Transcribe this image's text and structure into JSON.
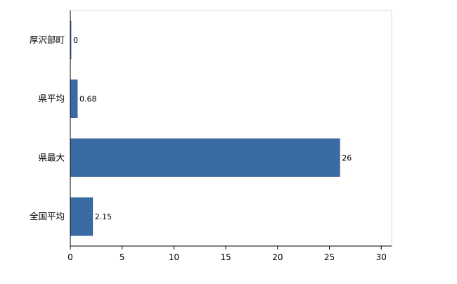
{
  "chart_data": {
    "type": "bar",
    "orientation": "horizontal",
    "title": "",
    "categories": [
      "厚沢部町",
      "県平均",
      "県最大",
      "全国平均"
    ],
    "values": [
      0,
      0.68,
      26,
      2.15
    ],
    "value_labels": [
      "0",
      "0.68",
      "26",
      "2.15"
    ],
    "x_ticks": [
      0,
      5,
      10,
      15,
      20,
      25,
      30
    ],
    "xlim": [
      0,
      31
    ],
    "grid": false,
    "legend": "none",
    "bar_color": "#3b6ba5",
    "bar_edge_color": "#335d90",
    "axis_color": "#000000",
    "plot_border_color": "#d9d9d9",
    "background": "#ffffff"
  }
}
